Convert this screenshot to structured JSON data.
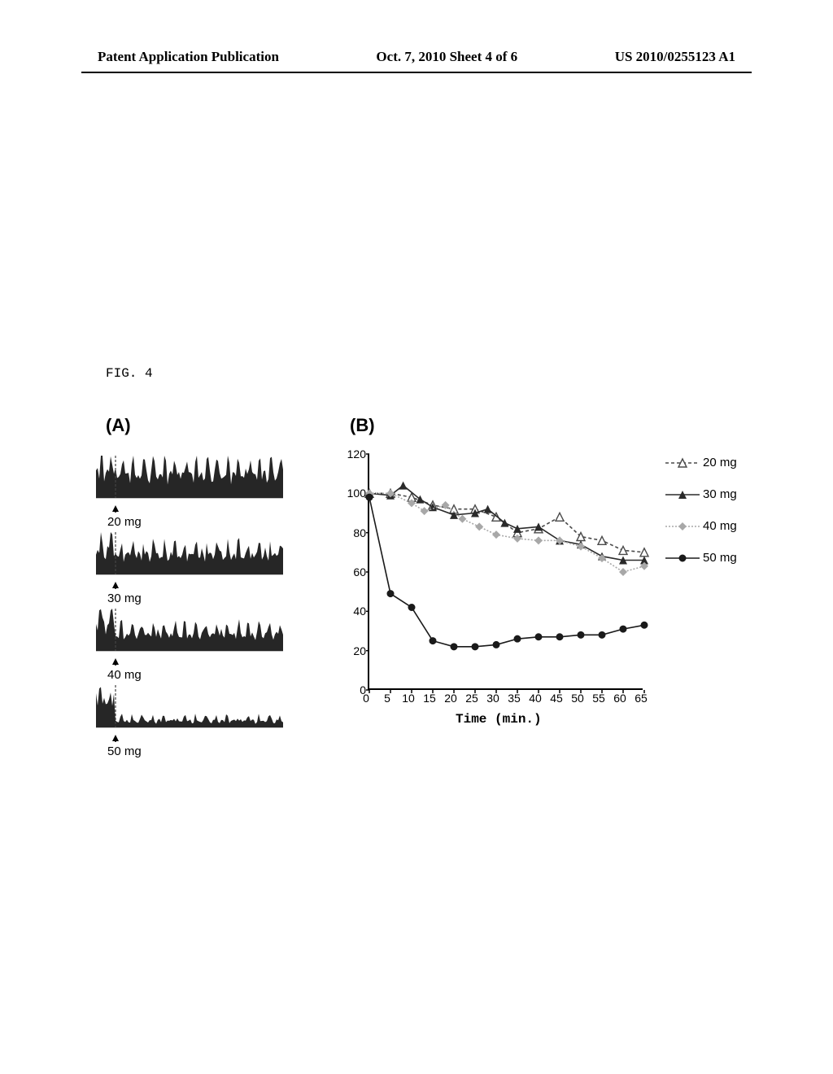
{
  "header": {
    "left": "Patent Application Publication",
    "center": "Oct. 7, 2010  Sheet 4 of 6",
    "right": "US 2010/0255123 A1"
  },
  "figure_title": "FIG. 4",
  "panel_a": {
    "label": "(A)",
    "traces": [
      {
        "dose": "20 mg",
        "pre_height": 45,
        "post_height": 42,
        "noise": 12
      },
      {
        "dose": "30 mg",
        "pre_height": 44,
        "post_height": 36,
        "noise": 10
      },
      {
        "dose": "40 mg",
        "pre_height": 48,
        "post_height": 30,
        "noise": 8
      },
      {
        "dose": "50 mg",
        "pre_height": 46,
        "post_height": 12,
        "noise": 4
      }
    ],
    "colors": {
      "trace": "#262626",
      "marker_line": "#444444"
    }
  },
  "panel_b": {
    "label": "(B)",
    "xlabel": "Time (min.)",
    "ylim": [
      0,
      120
    ],
    "ytick_step": 20,
    "xlim": [
      0,
      65
    ],
    "xtick_step": 5,
    "background_color": "#ffffff",
    "axis_color": "#000000",
    "series": [
      {
        "name": "20 mg",
        "color": "#4a4a4a",
        "dash": "4,3",
        "marker": "triangle-open",
        "points": [
          [
            0,
            100
          ],
          [
            5,
            100
          ],
          [
            10,
            98
          ],
          [
            15,
            94
          ],
          [
            20,
            92
          ],
          [
            25,
            92
          ],
          [
            30,
            88
          ],
          [
            35,
            80
          ],
          [
            40,
            82
          ],
          [
            45,
            88
          ],
          [
            50,
            78
          ],
          [
            55,
            76
          ],
          [
            60,
            71
          ],
          [
            65,
            70
          ]
        ]
      },
      {
        "name": "30 mg",
        "color": "#2a2a2a",
        "dash": "none",
        "marker": "triangle-filled",
        "points": [
          [
            0,
            100
          ],
          [
            5,
            99
          ],
          [
            8,
            104
          ],
          [
            12,
            97
          ],
          [
            15,
            93
          ],
          [
            20,
            89
          ],
          [
            25,
            90
          ],
          [
            28,
            92
          ],
          [
            32,
            85
          ],
          [
            35,
            82
          ],
          [
            40,
            83
          ],
          [
            45,
            76
          ],
          [
            50,
            74
          ],
          [
            55,
            68
          ],
          [
            60,
            66
          ],
          [
            65,
            66
          ]
        ]
      },
      {
        "name": "40 mg",
        "color": "#a8a8a8",
        "dash": "2,2",
        "marker": "diamond",
        "points": [
          [
            0,
            100
          ],
          [
            5,
            100
          ],
          [
            10,
            95
          ],
          [
            13,
            91
          ],
          [
            18,
            94
          ],
          [
            22,
            87
          ],
          [
            26,
            83
          ],
          [
            30,
            79
          ],
          [
            35,
            77
          ],
          [
            40,
            76
          ],
          [
            45,
            76
          ],
          [
            50,
            73
          ],
          [
            55,
            67
          ],
          [
            60,
            60
          ],
          [
            65,
            63
          ]
        ]
      },
      {
        "name": "50 mg",
        "color": "#1a1a1a",
        "dash": "none",
        "marker": "circle",
        "points": [
          [
            0,
            98
          ],
          [
            5,
            49
          ],
          [
            10,
            42
          ],
          [
            15,
            25
          ],
          [
            20,
            22
          ],
          [
            25,
            22
          ],
          [
            30,
            23
          ],
          [
            35,
            26
          ],
          [
            40,
            27
          ],
          [
            45,
            27
          ],
          [
            50,
            28
          ],
          [
            55,
            28
          ],
          [
            60,
            31
          ],
          [
            65,
            33
          ]
        ]
      }
    ]
  },
  "legend": [
    {
      "label": "20 mg",
      "key": 0
    },
    {
      "label": "30 mg",
      "key": 1
    },
    {
      "label": "40 mg",
      "key": 2
    },
    {
      "label": "50 mg",
      "key": 3
    }
  ]
}
